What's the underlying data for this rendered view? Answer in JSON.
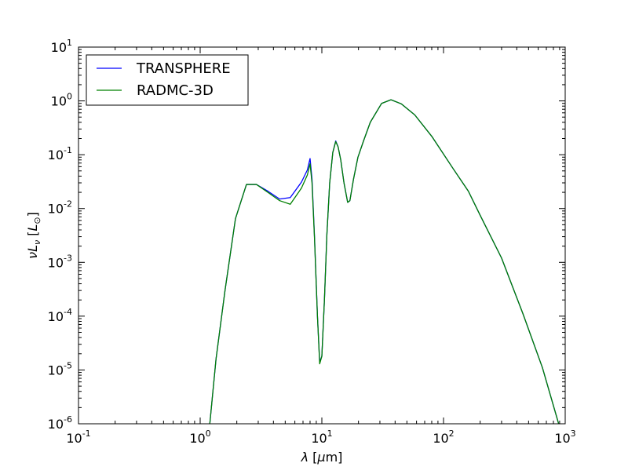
{
  "chart_data": {
    "type": "line",
    "xscale": "log",
    "yscale": "log",
    "xlim": [
      0.1,
      1000
    ],
    "ylim": [
      1e-06,
      10
    ],
    "xlabel": {
      "base": "λ [",
      "unit": "μ",
      "rest": "m]"
    },
    "ylabel": {
      "nu": "ν",
      "L": "L",
      "sub_nu": "ν",
      "unit": "L",
      "sub_sun": "⊙"
    },
    "x_ticks": [
      {
        "base": "10",
        "exp": "-1",
        "value": 0.1
      },
      {
        "base": "10",
        "exp": "0",
        "value": 1
      },
      {
        "base": "10",
        "exp": "1",
        "value": 10
      },
      {
        "base": "10",
        "exp": "2",
        "value": 100
      },
      {
        "base": "10",
        "exp": "3",
        "value": 1000
      }
    ],
    "y_ticks": [
      {
        "base": "10",
        "exp": "-6",
        "value": 1e-06
      },
      {
        "base": "10",
        "exp": "-5",
        "value": 1e-05
      },
      {
        "base": "10",
        "exp": "-4",
        "value": 0.0001
      },
      {
        "base": "10",
        "exp": "-3",
        "value": 0.001
      },
      {
        "base": "10",
        "exp": "-2",
        "value": 0.01
      },
      {
        "base": "10",
        "exp": "-1",
        "value": 0.1
      },
      {
        "base": "10",
        "exp": "0",
        "value": 1
      },
      {
        "base": "10",
        "exp": "1",
        "value": 10
      }
    ],
    "legend_position": "top-left",
    "grid": false,
    "series": [
      {
        "name": "TRANSPHERE",
        "color": "#0000ff",
        "x": [
          1.1,
          1.2,
          1.35,
          1.6,
          1.95,
          2.4,
          2.9,
          3.6,
          4.5,
          5.5,
          6.8,
          7.6,
          8.0,
          8.3,
          8.7,
          9.2,
          9.6,
          10.0,
          10.5,
          11.0,
          11.6,
          12.3,
          13.0,
          13.6,
          14.3,
          15.2,
          16.3,
          17.0,
          18.2,
          19.8,
          22.0,
          25.0,
          31.0,
          37.0,
          45.0,
          58.0,
          80.0,
          120.0,
          160.0,
          200.0,
          300.0,
          450.0,
          650.0,
          1000.0
        ],
        "y": [
          1e-07,
          1e-06,
          1.6e-05,
          0.0003,
          0.0065,
          0.028,
          0.028,
          0.021,
          0.015,
          0.016,
          0.031,
          0.052,
          0.085,
          0.035,
          0.003,
          0.0001,
          1.4e-05,
          1.8e-05,
          0.0002,
          0.0033,
          0.03,
          0.11,
          0.18,
          0.14,
          0.08,
          0.03,
          0.013,
          0.014,
          0.035,
          0.09,
          0.18,
          0.4,
          0.9,
          1.05,
          0.88,
          0.55,
          0.22,
          0.055,
          0.021,
          0.0075,
          0.0012,
          0.00011,
          1.1e-05,
          3.8e-07
        ]
      },
      {
        "name": "RADMC-3D",
        "color": "#008000",
        "x": [
          1.1,
          1.2,
          1.35,
          1.6,
          1.95,
          2.4,
          2.9,
          3.6,
          4.5,
          5.5,
          6.8,
          7.6,
          8.0,
          8.3,
          8.7,
          9.2,
          9.6,
          10.0,
          10.5,
          11.0,
          11.6,
          12.3,
          13.0,
          13.6,
          14.3,
          15.2,
          16.3,
          17.0,
          18.2,
          19.8,
          22.0,
          25.0,
          31.0,
          37.0,
          45.0,
          58.0,
          80.0,
          120.0,
          160.0,
          200.0,
          300.0,
          450.0,
          650.0,
          1000.0
        ],
        "y": [
          1e-07,
          1e-06,
          1.6e-05,
          0.0003,
          0.0065,
          0.028,
          0.028,
          0.02,
          0.014,
          0.012,
          0.024,
          0.042,
          0.068,
          0.03,
          0.0028,
          0.0001,
          1.3e-05,
          1.8e-05,
          0.0002,
          0.0033,
          0.03,
          0.11,
          0.175,
          0.14,
          0.08,
          0.03,
          0.013,
          0.014,
          0.035,
          0.09,
          0.18,
          0.4,
          0.9,
          1.05,
          0.88,
          0.55,
          0.22,
          0.055,
          0.021,
          0.0075,
          0.0012,
          0.00011,
          1.1e-05,
          3.8e-07
        ]
      }
    ]
  }
}
